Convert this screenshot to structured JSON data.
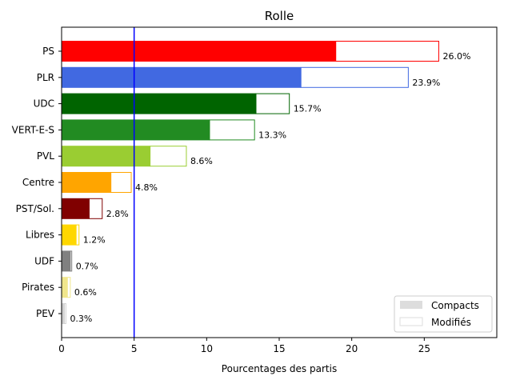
{
  "chart_data": {
    "type": "bar",
    "orientation": "horizontal",
    "title": "Rolle",
    "xlabel": "Pourcentages des partis",
    "ylabel": "",
    "xlim": [
      0,
      30
    ],
    "xticks": [
      0,
      5,
      10,
      15,
      20,
      25
    ],
    "grid": false,
    "legend_position": "bottom-right",
    "threshold_line": {
      "x": 5,
      "color": "#0000ff"
    },
    "legend": [
      {
        "label": "Compacts",
        "style": "filled",
        "color": "#dddddd"
      },
      {
        "label": "Modifiés",
        "style": "outline",
        "color": "#dddddd"
      }
    ],
    "categories": [
      "PS",
      "PLR",
      "UDC",
      "VERT-E-S",
      "PVL",
      "Centre",
      "PST/Sol.",
      "Libres",
      "UDF",
      "Pirates",
      "PEV"
    ],
    "series": [
      {
        "name": "Compacts",
        "values": [
          18.9,
          16.5,
          13.4,
          10.2,
          6.1,
          3.4,
          1.9,
          1.0,
          0.6,
          0.4,
          0.2
        ]
      },
      {
        "name": "Modifiés",
        "values": [
          7.1,
          7.4,
          2.3,
          3.1,
          2.5,
          1.4,
          0.9,
          0.2,
          0.1,
          0.2,
          0.1
        ]
      }
    ],
    "totals": [
      26.0,
      23.9,
      15.7,
      13.3,
      8.6,
      4.8,
      2.8,
      1.2,
      0.7,
      0.6,
      0.3
    ],
    "total_labels": [
      "26.0%",
      "23.9%",
      "15.7%",
      "13.3%",
      "8.6%",
      "4.8%",
      "2.8%",
      "1.2%",
      "0.7%",
      "0.6%",
      "0.3%"
    ],
    "colors": [
      "#ff0000",
      "#4169e1",
      "#006400",
      "#228b22",
      "#9acd32",
      "#ffa500",
      "#800000",
      "#ffd700",
      "#808080",
      "#f0e68c",
      "#d3d3d3"
    ]
  }
}
